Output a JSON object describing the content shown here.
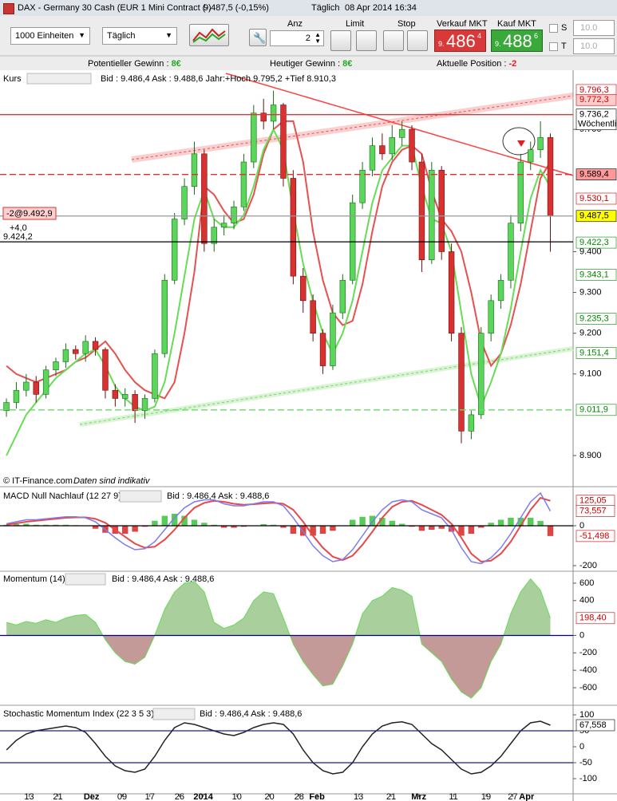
{
  "window": {
    "title": "DAX - Germany 30 Cash (EUR 1 Mini Contract (-)",
    "quote": "9.487,5 (-0,15%)",
    "interval": "Täglich",
    "datetime": "08 Apr 2014 16:34"
  },
  "toolbar": {
    "units": "1000 Einheiten",
    "period": "Täglich",
    "anz_label": "Anz",
    "anz": "2",
    "limit": "Limit",
    "stop": "Stop",
    "sell_label": "Verkauf MKT",
    "sell": {
      "pre": "9.",
      "big": "486",
      "post": "4"
    },
    "buy_label": "Kauf MKT",
    "buy": {
      "pre": "9.",
      "big": "488",
      "post": "6"
    },
    "s": "S",
    "t": "T",
    "s_value": "10.0",
    "t_value": "10.0"
  },
  "status": {
    "potential": "Potentieller Gewinn : ",
    "potential_value": "8€",
    "today": "Heutiger Gewinn : ",
    "today_value": "8€",
    "position": "Aktuelle Position : ",
    "position_value": "-2"
  },
  "footer": {
    "copyright": "© IT-Finance.com",
    "note": "Daten sind indikativ"
  },
  "chart_data": [
    {
      "type": "candlestick",
      "title": "Kurs",
      "info": "Bid : 9.486,4 Ask : 9.488,6 Jahr:+Hoch 9.795,2 +Tief 8.910,3",
      "xlim": [
        -0.65,
        57.3
      ],
      "ylim": [
        8853,
        9806
      ],
      "yticks": [
        {
          "value": 9700,
          "label": "9.700"
        },
        {
          "value": 9400,
          "label": "9.400"
        },
        {
          "value": 9300,
          "label": "9.300"
        },
        {
          "value": 9200,
          "label": "9.200"
        },
        {
          "value": 9100,
          "label": "9.100"
        },
        {
          "value": 8900,
          "label": "8.900"
        }
      ],
      "up_color": "#5ad65a",
      "down_color": "#d93030",
      "open": [
        9010,
        9030,
        9060,
        9080,
        9050,
        9110,
        9130,
        9160,
        9150,
        9180,
        9160,
        9060,
        9040,
        9050,
        9010,
        9040,
        9150,
        9330,
        9480,
        9560,
        9640,
        9420,
        9460,
        9470,
        9510,
        9620,
        9740,
        9720,
        9760,
        9580,
        9340,
        9280,
        9200,
        9120,
        9250,
        9330,
        9520,
        9600,
        9660,
        9640,
        9680,
        9700,
        9620,
        9380,
        9600,
        9400,
        9200,
        8960,
        9000,
        9200,
        9280,
        9330,
        9470,
        9620,
        9650,
        9680
      ],
      "high": [
        9040,
        9080,
        9100,
        9095,
        9120,
        9140,
        9175,
        9170,
        9195,
        9190,
        9165,
        9075,
        9065,
        9060,
        9050,
        9160,
        9345,
        9495,
        9580,
        9670,
        9650,
        9480,
        9490,
        9525,
        9640,
        9760,
        9775,
        9795,
        9765,
        9600,
        9360,
        9295,
        9210,
        9270,
        9345,
        9540,
        9620,
        9680,
        9690,
        9710,
        9720,
        9710,
        9640,
        9620,
        9610,
        9420,
        9215,
        9010,
        9215,
        9295,
        9345,
        9490,
        9640,
        9670,
        9720,
        9690
      ],
      "low": [
        8995,
        9015,
        9045,
        9030,
        9040,
        9095,
        9115,
        9135,
        9130,
        9145,
        9040,
        9020,
        9020,
        8980,
        8990,
        9030,
        9140,
        9320,
        9465,
        9540,
        9400,
        9400,
        9440,
        9455,
        9500,
        9605,
        9700,
        9700,
        9560,
        9320,
        9250,
        9180,
        9100,
        9110,
        9235,
        9320,
        9505,
        9585,
        9625,
        9625,
        9660,
        9600,
        9350,
        9370,
        9380,
        9180,
        8930,
        8940,
        8990,
        9180,
        9260,
        9310,
        9450,
        9600,
        9630,
        9400
      ],
      "close": [
        9030,
        9060,
        9080,
        9050,
        9110,
        9130,
        9160,
        9150,
        9180,
        9160,
        9060,
        9040,
        9050,
        9010,
        9040,
        9150,
        9330,
        9480,
        9560,
        9640,
        9420,
        9460,
        9470,
        9510,
        9620,
        9740,
        9720,
        9760,
        9580,
        9340,
        9280,
        9200,
        9120,
        9250,
        9330,
        9520,
        9600,
        9660,
        9640,
        9680,
        9700,
        9620,
        9380,
        9600,
        9400,
        9200,
        8960,
        9000,
        9200,
        9280,
        9330,
        9470,
        9620,
        9650,
        9680,
        9487.5
      ],
      "lines": [
        {
          "color": "#e85050",
          "width": 2,
          "values": [
            9120,
            9100,
            9090,
            9080,
            9090,
            9100,
            9110,
            9130,
            9140,
            9160,
            9180,
            9150,
            9110,
            9080,
            9060,
            9050,
            9040,
            9080,
            9200,
            9350,
            9560,
            9540,
            9500,
            9470,
            9480,
            9540,
            9640,
            9700,
            9720,
            9720,
            9620,
            9450,
            9330,
            9250,
            9220,
            9230,
            9320,
            9450,
            9560,
            9620,
            9650,
            9660,
            9640,
            9550,
            9480,
            9450,
            9400,
            9300,
            9180,
            9120,
            9150,
            9220,
            9320,
            9450,
            9580,
            9620
          ]
        },
        {
          "color": "#66dd55",
          "width": 2,
          "values": [
            8900,
            8950,
            9000,
            9030,
            9060,
            9090,
            9110,
            9130,
            9150,
            9160,
            9120,
            9070,
            9040,
            9020,
            9010,
            9020,
            9080,
            9200,
            9340,
            9480,
            9550,
            9480,
            9460,
            9460,
            9490,
            9560,
            9650,
            9700,
            9650,
            9500,
            9370,
            9280,
            9200,
            9150,
            9200,
            9280,
            9400,
            9520,
            9600,
            9630,
            9660,
            9660,
            9560,
            9480,
            9470,
            9400,
            9250,
            9100,
            9020,
            9080,
            9150,
            9260,
            9400,
            9530,
            9600,
            9560
          ]
        }
      ],
      "levels": [
        {
          "value": 9736.2,
          "color": "#f03030",
          "dash": false
        },
        {
          "value": 9589.4,
          "color": "#e03030",
          "dash": true
        },
        {
          "value": 9487.5,
          "color": "#999999",
          "dash": false
        },
        {
          "value": 9424.2,
          "color": "#000000",
          "dash": false,
          "label": "9.424,2"
        },
        {
          "value": 9011.9,
          "color": "#66dd66",
          "dash": true
        }
      ],
      "position": {
        "value": 9492.9,
        "label": "-2@9.492,9",
        "pl": "+4,0"
      },
      "price_labels": [
        {
          "value": 9796.3,
          "label": "9.796,3",
          "color": "#cc0000",
          "bg": "#ffffff"
        },
        {
          "value": 9772.3,
          "label": "9.772,3",
          "color": "#cc0000",
          "bg": "#ffcccc"
        },
        {
          "value": 9736.2,
          "label": "9.736,2",
          "note": "Wöchentli",
          "color": "#000000",
          "bg": "#ffffff"
        },
        {
          "value": 9589.4,
          "label": "9.589,4",
          "color": "#000000",
          "bg": "#ff9999"
        },
        {
          "value": 9530.1,
          "label": "9.530,1",
          "color": "#cc0000",
          "bg": "#ffffff"
        },
        {
          "value": 9487.5,
          "label": "9.487,5",
          "color": "#000000",
          "bg": "#ffff00"
        },
        {
          "value": 9422.3,
          "label": "9.422,3",
          "color": "#008800",
          "bg": "#ffffff"
        },
        {
          "value": 9343.1,
          "label": "9.343,1",
          "color": "#008800",
          "bg": "#ffffff"
        },
        {
          "value": 9235.3,
          "label": "9.235,3",
          "color": "#008800",
          "bg": "#ffffff"
        },
        {
          "value": 9151.4,
          "label": "9.151,4",
          "color": "#008800",
          "bg": "#ffffff"
        },
        {
          "value": 9011.9,
          "label": "9.011,9",
          "color": "#008800",
          "bg": "#ffffff"
        }
      ]
    },
    {
      "type": "macd",
      "title": "MACD Null Nachlauf (12 27 9)",
      "info": "Bid : 9.486,4 Ask : 9.488,6",
      "xlim": [
        -0.65,
        57.3
      ],
      "ylim": [
        -224,
        176
      ],
      "yticks": [
        0,
        -200
      ],
      "histogram": {
        "up_color": "#55cc55",
        "down_color": "#dd4444",
        "values": [
          5,
          8,
          10,
          5,
          5,
          5,
          5,
          3,
          -2,
          -15,
          -35,
          -40,
          -40,
          -30,
          -5,
          25,
          50,
          60,
          50,
          30,
          15,
          5,
          -10,
          -10,
          -5,
          2,
          8,
          5,
          -10,
          -40,
          -50,
          -50,
          -40,
          -25,
          2,
          30,
          45,
          50,
          40,
          25,
          10,
          -5,
          -25,
          -20,
          -15,
          -30,
          -50,
          -40,
          -10,
          15,
          30,
          40,
          40,
          40,
          24,
          -51.498
        ]
      },
      "lines": [
        {
          "color": "#e84848",
          "width": 2,
          "values": [
            5,
            12,
            20,
            25,
            30,
            35,
            40,
            42,
            42,
            35,
            15,
            -20,
            -55,
            -90,
            -110,
            -105,
            -70,
            -20,
            40,
            90,
            115,
            125,
            120,
            110,
            105,
            108,
            112,
            115,
            110,
            80,
            20,
            -50,
            -110,
            -155,
            -172,
            -150,
            -95,
            -30,
            40,
            95,
            120,
            125,
            105,
            80,
            55,
            10,
            -60,
            -140,
            -180,
            -175,
            -140,
            -80,
            0,
            80,
            140,
            125.05
          ]
        },
        {
          "color": "#7c7cf0",
          "width": 1.5,
          "values": [
            10,
            20,
            30,
            30,
            35,
            40,
            45,
            45,
            40,
            20,
            -20,
            -60,
            -95,
            -120,
            -115,
            -80,
            -20,
            40,
            90,
            120,
            130,
            130,
            110,
            100,
            100,
            110,
            120,
            120,
            100,
            40,
            -30,
            -100,
            -150,
            -180,
            -170,
            -120,
            -50,
            20,
            80,
            120,
            130,
            120,
            80,
            60,
            40,
            -20,
            -110,
            -180,
            -190,
            -160,
            -110,
            -40,
            40,
            120,
            164,
            73.557
          ]
        }
      ],
      "levels": [
        {
          "value": 0,
          "color": "#000000"
        }
      ],
      "last_labels": [
        {
          "value": 125.05,
          "label": "125,05",
          "color": "#cc0000",
          "bg": "#ffffff"
        },
        {
          "value": 73.557,
          "label": "73,557",
          "color": "#cc0000",
          "bg": "#ffffff"
        },
        {
          "value": -51.498,
          "label": "-51,498",
          "color": "#cc0000",
          "bg": "#ffffff"
        }
      ]
    },
    {
      "type": "area",
      "title": "Momentum (14)",
      "info": "Bid : 9.486,4 Ask : 9.488,6",
      "xlim": [
        -0.65,
        57.3
      ],
      "ylim": [
        -765,
        682
      ],
      "yticks": [
        600,
        400,
        0,
        -200,
        -400,
        -600
      ],
      "pos_color": "#a8cf9c",
      "neg_color": "#c49a98",
      "line_color": "#66dd55",
      "values": [
        150,
        120,
        160,
        140,
        180,
        150,
        200,
        230,
        240,
        150,
        -50,
        -200,
        -300,
        -330,
        -250,
        0,
        300,
        500,
        600,
        620,
        500,
        150,
        80,
        120,
        200,
        400,
        500,
        480,
        200,
        -100,
        -300,
        -450,
        -580,
        -560,
        -350,
        -100,
        250,
        400,
        450,
        550,
        520,
        450,
        -100,
        -200,
        -300,
        -500,
        -650,
        -720,
        -600,
        -300,
        -100,
        250,
        500,
        650,
        520,
        198.4
      ],
      "levels": [
        {
          "value": 0,
          "color": "#000080"
        }
      ],
      "last_labels": [
        {
          "value": 198.4,
          "label": "198,40",
          "color": "#cc0000",
          "bg": "#ffffff"
        }
      ]
    },
    {
      "type": "line",
      "title": "Stochastic Momentum Index (22 3 5 3)",
      "info": "Bid : 9.486,4 Ask : 9.488,6",
      "xlim": [
        -0.65,
        57.3
      ],
      "ylim": [
        -147.5,
        122.5
      ],
      "yticks": [
        100,
        50,
        0,
        -50,
        -100
      ],
      "xticks": [
        {
          "value": 2.3,
          "label": "13"
        },
        {
          "value": 5.2,
          "label": "21"
        },
        {
          "value": 8.6,
          "label": "Dez",
          "bold": true
        },
        {
          "value": 11.7,
          "label": "09"
        },
        {
          "value": 14.5,
          "label": "17"
        },
        {
          "value": 17.5,
          "label": "26"
        },
        {
          "value": 19.9,
          "label": "2014",
          "bold": true
        },
        {
          "value": 23.3,
          "label": "10"
        },
        {
          "value": 26.6,
          "label": "20"
        },
        {
          "value": 29.6,
          "label": "28"
        },
        {
          "value": 31.4,
          "label": "Feb",
          "bold": true
        },
        {
          "value": 35.6,
          "label": "13"
        },
        {
          "value": 38.9,
          "label": "21"
        },
        {
          "value": 41.7,
          "label": "Mrz",
          "bold": true
        },
        {
          "value": 45.2,
          "label": "11"
        },
        {
          "value": 48.5,
          "label": "19"
        },
        {
          "value": 51.2,
          "label": "27"
        },
        {
          "value": 52.6,
          "label": "Apr",
          "bold": true
        }
      ],
      "lines": [
        {
          "color": "#222222",
          "width": 1.5,
          "values": [
            -10,
            20,
            40,
            50,
            55,
            60,
            65,
            60,
            45,
            10,
            -30,
            -60,
            -75,
            -80,
            -70,
            -30,
            20,
            60,
            75,
            70,
            60,
            50,
            40,
            35,
            45,
            60,
            70,
            75,
            70,
            40,
            -10,
            -50,
            -75,
            -85,
            -80,
            -50,
            0,
            40,
            65,
            75,
            78,
            70,
            40,
            10,
            -10,
            -40,
            -70,
            -85,
            -80,
            -60,
            -30,
            10,
            50,
            75,
            80,
            67.558
          ]
        }
      ],
      "levels": [
        {
          "value": 50,
          "color": "#202080"
        },
        {
          "value": -50,
          "color": "#202080"
        }
      ],
      "last_labels": [
        {
          "value": 67.558,
          "label": "67,558",
          "color": "#000000",
          "bg": "#ffffff"
        }
      ]
    }
  ]
}
